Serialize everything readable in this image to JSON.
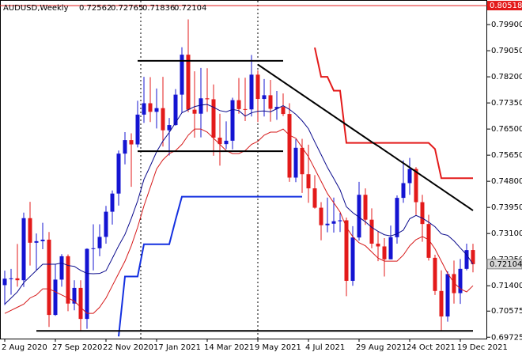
{
  "chart_data": {
    "type": "candlestick",
    "symbol": "AUDUSD,Weekly",
    "categories": [
      "2 Aug 2020",
      null,
      null,
      null,
      null,
      null,
      null,
      null,
      "27 Sep 2020",
      null,
      null,
      null,
      null,
      null,
      null,
      null,
      "22 Nov 2020",
      null,
      null,
      null,
      null,
      null,
      null,
      null,
      "17 Jan 2021",
      null,
      null,
      null,
      null,
      null,
      null,
      null,
      "14 Mar 2021",
      null,
      null,
      null,
      null,
      null,
      null,
      null,
      "9 May 2021",
      null,
      null,
      null,
      null,
      null,
      null,
      null,
      "4 Jul 2021",
      null,
      null,
      null,
      null,
      null,
      null,
      null,
      "29 Aug 2021",
      null,
      null,
      null,
      null,
      null,
      null,
      null,
      "24 Oct 2021",
      null,
      null,
      null,
      null,
      null,
      null,
      null,
      "19 Dec 2021",
      null,
      null
    ],
    "open": [
      0.7142,
      0.7163,
      0.7164,
      0.7158,
      0.736,
      0.728,
      0.7285,
      0.729,
      0.7045,
      0.716,
      0.7236,
      0.7082,
      0.7133,
      0.7032,
      0.726,
      0.7262,
      0.7299,
      0.7381,
      0.744,
      0.757,
      0.7614,
      0.76,
      0.7697,
      0.7734,
      0.7706,
      0.7718,
      0.7646,
      0.7663,
      0.7762,
      0.7892,
      0.7713,
      0.77,
      0.775,
      0.7747,
      0.7622,
      0.7601,
      0.7612,
      0.7744,
      0.7715,
      0.7714,
      0.7827,
      0.7748,
      0.776,
      0.7716,
      0.7722,
      0.7699,
      0.7492,
      0.7589,
      0.7503,
      0.7457,
      0.7394,
      0.7337,
      0.7342,
      0.735,
      0.7353,
      0.7156,
      0.7297,
      0.7436,
      0.7355,
      0.7277,
      0.7268,
      0.7226,
      0.7298,
      0.7426,
      0.7474,
      0.752,
      0.7412,
      0.7341,
      0.7231,
      0.7123,
      0.704,
      0.7178,
      0.7116,
      0.7195,
      0.72562
    ],
    "high": [
      0.7189,
      0.7195,
      0.7276,
      0.7378,
      0.7413,
      0.731,
      0.7345,
      0.7315,
      0.7209,
      0.7243,
      0.7242,
      0.7158,
      0.7158,
      0.7262,
      0.734,
      0.734,
      0.74,
      0.745,
      0.758,
      0.764,
      0.7636,
      0.7742,
      0.782,
      0.7819,
      0.7782,
      0.782,
      0.7686,
      0.778,
      0.7916,
      0.8007,
      0.7838,
      0.7849,
      0.7848,
      0.7795,
      0.77,
      0.7675,
      0.7752,
      0.7816,
      0.7817,
      0.7891,
      0.7841,
      0.7813,
      0.781,
      0.7774,
      0.7766,
      0.7734,
      0.7617,
      0.7618,
      0.7599,
      0.75,
      0.7412,
      0.7427,
      0.7427,
      0.7377,
      0.7362,
      0.7334,
      0.7478,
      0.7457,
      0.7392,
      0.7316,
      0.7295,
      0.7336,
      0.7434,
      0.7548,
      0.7556,
      0.7526,
      0.7436,
      0.7371,
      0.7241,
      0.719,
      0.7187,
      0.7222,
      0.7227,
      0.7277,
      0.72765
    ],
    "low": [
      0.7077,
      0.7111,
      0.7137,
      0.7136,
      0.7206,
      0.7191,
      0.7259,
      0.7006,
      0.7042,
      0.7137,
      0.7057,
      0.706,
      0.6991,
      0.7,
      0.719,
      0.7236,
      0.7277,
      0.7339,
      0.7401,
      0.7535,
      0.7462,
      0.759,
      0.767,
      0.7673,
      0.7652,
      0.7593,
      0.7564,
      0.7661,
      0.7702,
      0.7705,
      0.7622,
      0.7623,
      0.7706,
      0.7563,
      0.7531,
      0.7585,
      0.7584,
      0.77,
      0.7676,
      0.7691,
      0.7673,
      0.7691,
      0.7674,
      0.768,
      0.7692,
      0.7478,
      0.7477,
      0.7442,
      0.741,
      0.7391,
      0.7288,
      0.7314,
      0.7313,
      0.7315,
      0.7106,
      0.714,
      0.7287,
      0.7338,
      0.7262,
      0.722,
      0.717,
      0.7226,
      0.7277,
      0.741,
      0.7436,
      0.737,
      0.7283,
      0.7222,
      0.711,
      0.6993,
      0.7023,
      0.7082,
      0.7081,
      0.719,
      0.71836
    ],
    "close": [
      0.7163,
      0.7164,
      0.7158,
      0.736,
      0.728,
      0.7285,
      0.729,
      0.7045,
      0.716,
      0.7236,
      0.7082,
      0.7133,
      0.7032,
      0.726,
      0.7262,
      0.7299,
      0.7381,
      0.744,
      0.757,
      0.7614,
      0.76,
      0.7697,
      0.7734,
      0.7706,
      0.7718,
      0.7646,
      0.7663,
      0.7762,
      0.7892,
      0.7713,
      0.77,
      0.775,
      0.7747,
      0.7622,
      0.7601,
      0.7612,
      0.7744,
      0.7715,
      0.7714,
      0.7827,
      0.7748,
      0.776,
      0.7716,
      0.7722,
      0.7699,
      0.7492,
      0.7589,
      0.7503,
      0.7457,
      0.7394,
      0.7337,
      0.7342,
      0.735,
      0.7353,
      0.7156,
      0.7297,
      0.7436,
      0.7355,
      0.7277,
      0.7268,
      0.7226,
      0.7298,
      0.7426,
      0.7474,
      0.752,
      0.7412,
      0.7341,
      0.7231,
      0.7123,
      0.704,
      0.7178,
      0.7116,
      0.7195,
      0.7256,
      0.72104
    ],
    "up_color": "#1414d2",
    "down_color": "#e31a1a",
    "ylim": [
      0.6968,
      0.807
    ],
    "yticks": [
      {
        "value": 0.799,
        "label": "0.79900"
      },
      {
        "value": 0.7905,
        "label": "0.79050"
      },
      {
        "value": 0.782,
        "label": "0.78200"
      },
      {
        "value": 0.7735,
        "label": "0.77350"
      },
      {
        "value": 0.765,
        "label": "0.76500"
      },
      {
        "value": 0.7565,
        "label": "0.75650"
      },
      {
        "value": 0.748,
        "label": "0.74800"
      },
      {
        "value": 0.7395,
        "label": "0.73950"
      },
      {
        "value": 0.731,
        "label": "0.73100"
      },
      {
        "value": 0.7225,
        "label": "0.72250"
      },
      {
        "value": 0.714,
        "label": "0.71400"
      },
      {
        "value": 0.70575,
        "label": "0.70575"
      },
      {
        "value": 0.69725,
        "label": "0.69725"
      }
    ],
    "high_line": {
      "value": 0.80518,
      "color": "#e31a1a"
    },
    "overlays": [
      {
        "color": "#0a0a8c",
        "width": 1,
        "values": [
          0.708,
          0.71,
          0.712,
          0.715,
          0.717,
          0.719,
          0.721,
          0.721,
          0.721,
          0.7214,
          0.7206,
          0.7203,
          0.719,
          0.718,
          0.7179,
          0.718,
          0.7189,
          0.7229,
          0.727,
          0.7307,
          0.7359,
          0.7416,
          0.7486,
          0.753,
          0.7576,
          0.7611,
          0.7639,
          0.7671,
          0.7703,
          0.7713,
          0.7723,
          0.7728,
          0.773,
          0.7721,
          0.771,
          0.7706,
          0.7714,
          0.771,
          0.7692,
          0.7703,
          0.7708,
          0.7709,
          0.7706,
          0.7716,
          0.7726,
          0.7714,
          0.7698,
          0.7677,
          0.7651,
          0.7608,
          0.7567,
          0.7525,
          0.7489,
          0.7452,
          0.7397,
          0.7378,
          0.7363,
          0.7348,
          0.733,
          0.7317,
          0.7306,
          0.7302,
          0.7309,
          0.7321,
          0.7358,
          0.7369,
          0.736,
          0.7347,
          0.7332,
          0.7309,
          0.7304,
          0.7286,
          0.7263,
          0.7241,
          0.721
        ]
      },
      {
        "color": "#d61a1a",
        "width": 1,
        "values": [
          0.705,
          0.706,
          0.707,
          0.708,
          0.71,
          0.711,
          0.713,
          0.713,
          0.712,
          0.711,
          0.71,
          0.709,
          0.707,
          0.705,
          0.705,
          0.707,
          0.71,
          0.714,
          0.718,
          0.722,
          0.727,
          0.733,
          0.74,
          0.746,
          0.752,
          0.755,
          0.757,
          0.758,
          0.76,
          0.763,
          0.765,
          0.765,
          0.764,
          0.762,
          0.76,
          0.758,
          0.757,
          0.757,
          0.758,
          0.76,
          0.761,
          0.763,
          0.764,
          0.764,
          0.765,
          0.763,
          0.762,
          0.759,
          0.756,
          0.752,
          0.748,
          0.744,
          0.741,
          0.738,
          0.733,
          0.73,
          0.728,
          0.727,
          0.725,
          0.723,
          0.722,
          0.722,
          0.722,
          0.724,
          0.727,
          0.729,
          0.73,
          0.729,
          0.726,
          0.722,
          0.718,
          0.715,
          0.713,
          0.712,
          0.714
        ]
      },
      {
        "color": "#e31a1a",
        "width": 2,
        "values": [
          null,
          null,
          null,
          null,
          null,
          null,
          null,
          null,
          null,
          null,
          null,
          null,
          null,
          null,
          null,
          null,
          null,
          null,
          null,
          null,
          null,
          null,
          null,
          null,
          null,
          null,
          null,
          null,
          null,
          null,
          null,
          null,
          null,
          null,
          null,
          null,
          null,
          null,
          null,
          null,
          null,
          null,
          null,
          null,
          null,
          null,
          null,
          null,
          null,
          0.7915,
          0.782,
          0.782,
          0.7775,
          0.7775,
          0.7605,
          0.7605,
          0.7605,
          0.7605,
          0.7605,
          0.7605,
          0.7605,
          0.7605,
          0.7605,
          0.7605,
          0.7605,
          0.7605,
          0.7605,
          0.7605,
          0.7585,
          0.749,
          0.749,
          0.749,
          0.749,
          0.749,
          0.749
        ]
      },
      {
        "color": "#1430e0",
        "width": 2,
        "values": [
          null,
          null,
          null,
          null,
          null,
          null,
          null,
          null,
          null,
          null,
          null,
          null,
          null,
          null,
          null,
          null,
          null,
          null,
          0.6975,
          0.717,
          0.717,
          0.717,
          0.7275,
          0.7275,
          0.7275,
          0.7275,
          0.7275,
          0.7355,
          0.743,
          0.743,
          0.743,
          0.743,
          0.743,
          0.743,
          0.743,
          0.743,
          0.743,
          0.743,
          0.743,
          0.743,
          0.743,
          0.743,
          0.743,
          0.743,
          0.743,
          0.743,
          0.743,
          0.743,
          null,
          null,
          null,
          null,
          null,
          null,
          null,
          null,
          null,
          null,
          null,
          null,
          null,
          null,
          null,
          null,
          null,
          null,
          null,
          null,
          null,
          null,
          null,
          null,
          null,
          null,
          null
        ]
      },
      {
        "color": "#000000",
        "width": 2,
        "values": [
          null,
          null,
          null,
          null,
          null,
          null,
          null,
          null,
          null,
          null,
          null,
          null,
          null,
          null,
          null,
          null,
          null,
          null,
          null,
          null,
          null,
          null,
          null,
          null,
          null,
          null,
          null,
          null,
          null,
          null,
          null,
          null,
          null,
          null,
          null,
          null,
          null,
          null,
          null,
          null,
          0.786,
          0.7846,
          0.7832,
          0.7818,
          0.7804,
          0.779,
          0.7776,
          0.7762,
          0.7748,
          0.7734,
          0.772,
          0.7706,
          0.7692,
          0.7678,
          0.7664,
          0.765,
          0.7636,
          0.7622,
          0.7608,
          0.7595,
          0.7581,
          0.7567,
          0.7553,
          0.7539,
          0.7525,
          0.7511,
          0.7497,
          0.7483,
          0.7469,
          0.7455,
          0.7441,
          0.7427,
          0.7413,
          0.7399,
          0.7385
        ]
      },
      {
        "color": "#000000",
        "width": 2,
        "values": [
          null,
          null,
          null,
          null,
          null,
          null,
          null,
          null,
          null,
          null,
          null,
          null,
          null,
          null,
          null,
          null,
          null,
          null,
          null,
          null,
          null,
          0.7872,
          0.7872,
          0.7872,
          0.7872,
          0.7872,
          0.7872,
          0.7872,
          0.7872,
          0.7872,
          0.7872,
          0.7872,
          0.7872,
          0.7872,
          0.7872,
          0.7872,
          0.7872,
          0.7872,
          0.7872,
          0.7872,
          0.7872,
          0.7872,
          0.7872,
          0.7872,
          0.7872,
          null,
          null,
          null,
          null,
          null,
          null,
          null,
          null,
          null,
          null,
          null,
          null,
          null,
          null,
          null,
          null,
          null,
          null,
          null,
          null,
          null,
          null,
          null,
          null,
          null,
          null,
          null,
          null,
          null,
          null
        ]
      },
      {
        "color": "#000000",
        "width": 2,
        "values": [
          null,
          null,
          null,
          null,
          null,
          null,
          null,
          null,
          null,
          null,
          null,
          null,
          null,
          null,
          null,
          null,
          null,
          null,
          null,
          null,
          null,
          0.7578,
          0.7578,
          0.7578,
          0.7578,
          0.7578,
          0.7578,
          0.7578,
          0.7578,
          0.7578,
          0.7578,
          0.7578,
          0.7578,
          0.7578,
          0.7578,
          0.7578,
          0.7578,
          0.7578,
          0.7578,
          0.7578,
          0.7578,
          0.7578,
          0.7578,
          0.7578,
          0.7578,
          null,
          null,
          null,
          null,
          null,
          null,
          null,
          null,
          null,
          null,
          null,
          null,
          null,
          null,
          null,
          null,
          null,
          null,
          null,
          null,
          null,
          null,
          null,
          null,
          null,
          null,
          null,
          null,
          null,
          null
        ]
      },
      {
        "color": "#000000",
        "width": 2,
        "values": [
          null,
          null,
          null,
          null,
          null,
          0.6993,
          0.6993,
          0.6993,
          0.6993,
          0.6993,
          0.6993,
          0.6993,
          0.6993,
          0.6993,
          0.6993,
          0.6993,
          0.6993,
          0.6993,
          0.6993,
          0.6993,
          0.6993,
          0.6993,
          0.6993,
          0.6993,
          0.6993,
          0.6993,
          0.6993,
          0.6993,
          0.6993,
          0.6993,
          0.6993,
          0.6993,
          0.6993,
          0.6993,
          0.6993,
          0.6993,
          0.6993,
          0.6993,
          0.6993,
          0.6993,
          0.6993,
          0.6993,
          0.6993,
          0.6993,
          0.6993,
          0.6993,
          0.6993,
          0.6993,
          0.6993,
          0.6993,
          0.6993,
          0.6993,
          0.6993,
          0.6993,
          0.6993,
          0.6993,
          0.6993,
          0.6993,
          0.6993,
          0.6993,
          0.6993,
          0.6993,
          0.6993,
          0.6993,
          0.6993,
          0.6993,
          0.6993,
          0.6993,
          0.6993,
          0.6993,
          0.6993,
          0.6993,
          0.6993,
          0.6993,
          0.6993
        ]
      }
    ]
  }
}
